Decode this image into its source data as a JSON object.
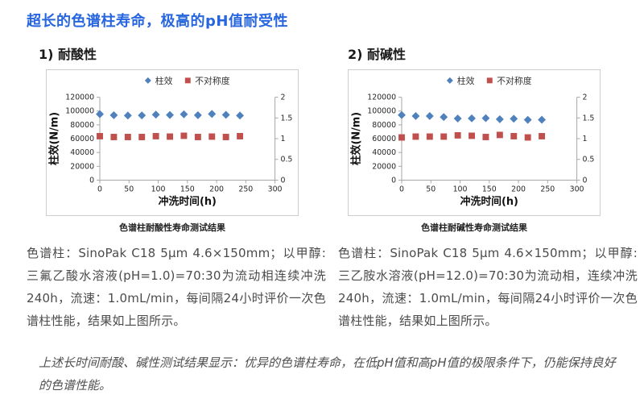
{
  "page": {
    "title": "超长的色谱柱寿命，极高的pH值耐受性",
    "title_color": "#2766DF"
  },
  "sections": [
    {
      "heading": "1) 耐酸性",
      "caption": "色谱柱耐酸性寿命测试结果",
      "paragraph": "色谱柱：SinoPak C18 5μm 4.6×150mm；以甲醇:三氟乙酸水溶液(pH=1.0)=70:30为流动相连续冲洗240h，流速：1.0mL/min，每间隔24小时评价一次色谱柱性能，结果如上图所示。"
    },
    {
      "heading": "2) 耐碱性",
      "caption": "色谱柱耐碱性寿命测试结果",
      "paragraph": "色谱柱：SinoPak C18 5μm 4.6×150mm；以甲醇:三乙胺水溶液(pH=12.0)=70:30为流动相，连续冲洗240h，流速：1.0mL/min，每间隔24小时评价一次色谱柱性能，结果如上图所示。"
    }
  ],
  "footer_note": "上述长时间耐酸、碱性测试结果显示：优异的色谱柱寿命，在低pH值和高pH值的极限条件下，仍能保持良好的色谱性能。",
  "chart_data": [
    {
      "type": "scatter",
      "title": "色谱柱耐酸性寿命测试结果",
      "legend_position": "top",
      "grid": false,
      "x": [
        0,
        24,
        48,
        72,
        96,
        120,
        144,
        168,
        192,
        216,
        240
      ],
      "x_axis": {
        "label": "冲洗时间(h)",
        "min": 0,
        "max": 300,
        "step": 50
      },
      "left_axis": {
        "label": "柱效(N/m)",
        "min": 0,
        "max": 120000,
        "step": 20000
      },
      "right_axis": {
        "label": "",
        "min": 0,
        "max": 2,
        "step": 0.5
      },
      "series": [
        {
          "name": "柱效",
          "key": "column-efficiency",
          "axis": "left",
          "marker": "diamond",
          "color": "#4F81BD",
          "values": [
            95500,
            94000,
            93500,
            93700,
            94800,
            94300,
            95300,
            94000,
            95800,
            94500,
            93500
          ]
        },
        {
          "name": "不对称度",
          "key": "asymmetry",
          "axis": "right",
          "marker": "square",
          "color": "#C0504D",
          "values": [
            1.06,
            1.04,
            1.04,
            1.04,
            1.06,
            1.05,
            1.07,
            1.04,
            1.05,
            1.04,
            1.06
          ]
        }
      ]
    },
    {
      "type": "scatter",
      "title": "色谱柱耐碱性寿命测试结果",
      "legend_position": "top",
      "grid": false,
      "x": [
        0,
        24,
        48,
        72,
        96,
        120,
        144,
        168,
        192,
        216,
        240
      ],
      "x_axis": {
        "label": "冲洗时间(h)",
        "min": 0,
        "max": 300,
        "step": 50
      },
      "left_axis": {
        "label": "柱效(N/m)",
        "min": 0,
        "max": 120000,
        "step": 20000
      },
      "right_axis": {
        "label": "",
        "min": 0,
        "max": 2,
        "step": 0.5
      },
      "series": [
        {
          "name": "柱效",
          "key": "column-efficiency",
          "axis": "left",
          "marker": "diamond",
          "color": "#4F81BD",
          "values": [
            94200,
            92800,
            92800,
            91300,
            89200,
            89400,
            89700,
            88200,
            88900,
            87300,
            87400
          ]
        },
        {
          "name": "不对称度",
          "key": "asymmetry",
          "axis": "right",
          "marker": "square",
          "color": "#C0504D",
          "values": [
            1.03,
            1.05,
            1.05,
            1.05,
            1.08,
            1.07,
            1.04,
            1.09,
            1.06,
            1.03,
            1.06
          ]
        }
      ]
    }
  ]
}
